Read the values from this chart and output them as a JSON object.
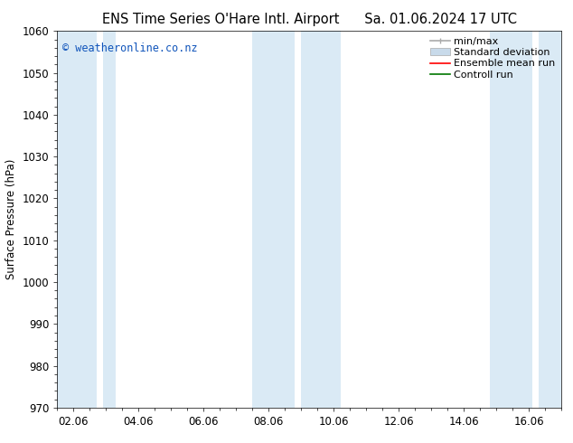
{
  "title_left": "ENS Time Series O'Hare Intl. Airport",
  "title_right": "Sa. 01.06.2024 17 UTC",
  "ylabel": "Surface Pressure (hPa)",
  "ylim": [
    970,
    1060
  ],
  "yticks": [
    970,
    980,
    990,
    1000,
    1010,
    1020,
    1030,
    1040,
    1050,
    1060
  ],
  "xtick_labels": [
    "02.06",
    "04.06",
    "06.06",
    "08.06",
    "10.06",
    "12.06",
    "14.06",
    "16.06"
  ],
  "xtick_positions": [
    2,
    4,
    6,
    8,
    10,
    12,
    14,
    16
  ],
  "xmin": 1.5,
  "xmax": 17.0,
  "bg_color": "#ffffff",
  "plot_bg_color": "#ffffff",
  "shaded_bands": [
    {
      "x_start": 1.5,
      "x_end": 2.7
    },
    {
      "x_start": 2.9,
      "x_end": 3.3
    },
    {
      "x_start": 7.5,
      "x_end": 8.8
    },
    {
      "x_start": 9.0,
      "x_end": 10.2
    },
    {
      "x_start": 14.8,
      "x_end": 16.1
    },
    {
      "x_start": 16.3,
      "x_end": 17.0
    }
  ],
  "band_color": "#daeaf5",
  "copyright_text": "© weatheronline.co.nz",
  "copyright_color": "#1155bb",
  "legend_entries": [
    {
      "label": "min/max",
      "color": "#aaaaaa",
      "lw": 1.2,
      "style": "minmax"
    },
    {
      "label": "Standard deviation",
      "color": "#c8daea",
      "lw": 6,
      "style": "band"
    },
    {
      "label": "Ensemble mean run",
      "color": "#ff0000",
      "lw": 1.2,
      "style": "line"
    },
    {
      "label": "Controll run",
      "color": "#007700",
      "lw": 1.2,
      "style": "line"
    }
  ],
  "title_fontsize": 10.5,
  "tick_fontsize": 8.5,
  "ylabel_fontsize": 8.5,
  "copyright_fontsize": 8.5,
  "legend_fontsize": 8
}
